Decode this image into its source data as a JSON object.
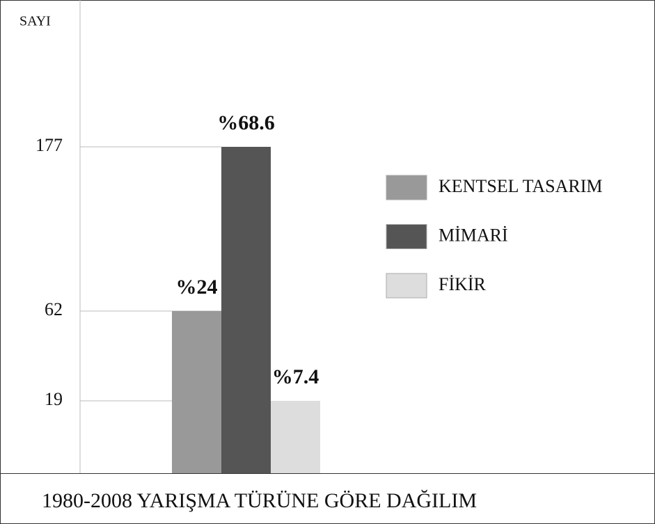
{
  "chart_data": {
    "type": "bar",
    "title": "1980-2008 YARIŞMA TÜRÜNE GÖRE DAĞILIM",
    "y_label": "SAYI",
    "series": [
      {
        "name": "KENTSEL TASARIM",
        "color": "#999999",
        "values": [
          62
        ],
        "value_labels": [
          "%24"
        ]
      },
      {
        "name": "MİMARİ",
        "color": "#555555",
        "values": [
          177
        ],
        "value_labels": [
          "%68.6"
        ]
      },
      {
        "name": "FİKİR",
        "color": "#dddddd",
        "values": [
          19
        ],
        "value_labels": [
          "%7.4"
        ]
      }
    ],
    "ylim": [
      0,
      200
    ],
    "yticks": [
      19,
      62,
      177
    ],
    "grid": true,
    "legend": "right"
  }
}
